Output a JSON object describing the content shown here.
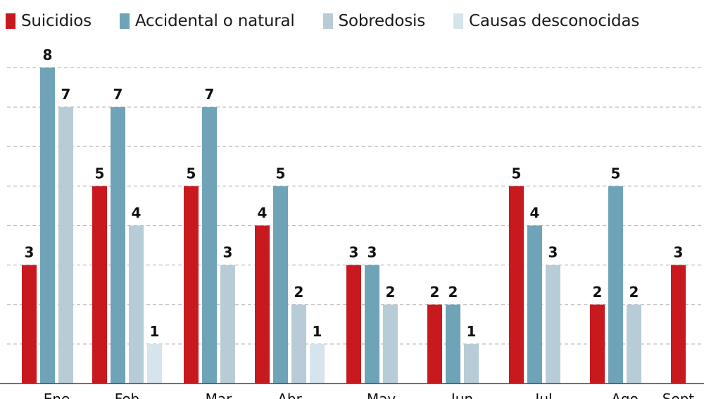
{
  "chart_data": {
    "type": "bar",
    "title": "",
    "xlabel": "",
    "ylabel": "",
    "ylim": [
      0,
      8
    ],
    "grid": true,
    "legend_position": "top-left",
    "categories": [
      "Ene",
      "Feb",
      "Mar",
      "Abr",
      "May",
      "Jun",
      "Jul",
      "Ago",
      "Sept"
    ],
    "series": [
      {
        "name": "Suicidios",
        "color": "#c8191e",
        "values": [
          3,
          5,
          5,
          4,
          3,
          2,
          5,
          2,
          3
        ]
      },
      {
        "name": "Accidental o natural",
        "color": "#6fa3b7",
        "values": [
          8,
          7,
          7,
          5,
          3,
          2,
          4,
          5,
          null
        ]
      },
      {
        "name": "Sobredosis",
        "color": "#b7ccd7",
        "values": [
          7,
          4,
          3,
          2,
          2,
          1,
          3,
          2,
          null
        ]
      },
      {
        "name": "Causas desconocidas",
        "color": "#d6e4ec",
        "values": [
          null,
          1,
          null,
          1,
          null,
          null,
          null,
          null,
          null
        ]
      }
    ]
  }
}
